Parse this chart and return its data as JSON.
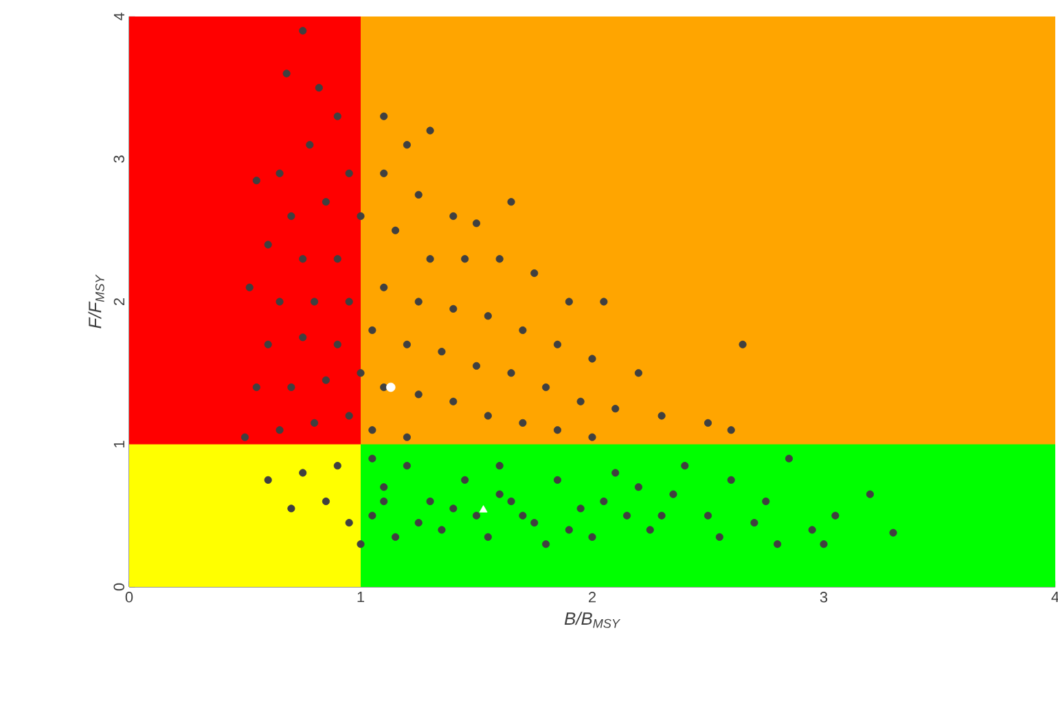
{
  "chart_data": {
    "type": "scatter",
    "xlabel": "B/B$_{MSY}$",
    "ylabel": "F/F$_{MSY}$",
    "xlim": [
      0,
      4
    ],
    "ylim": [
      0,
      4
    ],
    "xticks": [
      0,
      1,
      2,
      3,
      4
    ],
    "yticks": [
      0,
      1,
      2,
      3,
      4
    ],
    "series": [
      {
        "type": "area",
        "color": "#ff0000",
        "x": [
          0,
          1
        ],
        "values": [
          4,
          4
        ]
      },
      {
        "type": "area",
        "color": "#ffa500",
        "x": [
          1,
          4
        ],
        "values": [
          4,
          4
        ]
      },
      {
        "type": "area",
        "color": "#ffff00",
        "x": [
          0,
          1
        ],
        "values": [
          1,
          1
        ]
      },
      {
        "type": "area",
        "color": "#00ff00",
        "x": [
          1,
          4
        ],
        "values": [
          1,
          1
        ]
      },
      {
        "color": "#404040",
        "marker": "circle",
        "x": [
          0.75,
          0.68,
          0.82,
          0.9,
          0.78,
          0.65,
          0.95,
          0.55,
          0.7,
          0.85,
          1.0,
          0.6,
          0.75,
          0.9,
          0.52,
          0.65,
          0.8,
          0.95,
          0.6,
          0.75,
          0.9,
          0.55,
          0.7,
          0.85,
          1.0,
          0.5,
          0.65,
          0.8,
          0.95,
          1.1,
          1.2,
          1.3,
          1.1,
          1.25,
          1.4,
          1.5,
          1.65,
          1.15,
          1.3,
          1.45,
          1.6,
          1.75,
          1.9,
          2.05,
          1.1,
          1.25,
          1.4,
          1.55,
          1.7,
          1.85,
          2.0,
          2.2,
          1.05,
          1.2,
          1.35,
          1.5,
          1.65,
          1.8,
          1.95,
          2.1,
          2.3,
          2.5,
          2.65,
          2.6,
          1.1,
          1.25,
          1.4,
          1.55,
          1.7,
          1.85,
          2.0,
          1.05,
          1.2,
          0.6,
          0.75,
          0.9,
          0.7,
          0.85,
          0.95,
          1.05,
          1.1,
          1.05,
          1.15,
          1.2,
          1.3,
          1.35,
          1.45,
          1.5,
          1.55,
          1.6,
          1.65,
          1.75,
          1.8,
          1.85,
          1.95,
          2.0,
          2.1,
          2.15,
          2.25,
          2.35,
          2.4,
          2.5,
          2.55,
          2.6,
          2.7,
          2.8,
          2.85,
          2.75,
          2.95,
          3.05,
          3.0,
          3.2,
          3.3,
          1.0,
          1.25,
          1.4,
          1.7,
          1.9,
          2.05,
          2.3,
          1.1,
          1.6,
          2.2
        ],
        "values": [
          3.9,
          3.6,
          3.5,
          3.3,
          3.1,
          2.9,
          2.9,
          2.85,
          2.6,
          2.7,
          2.6,
          2.4,
          2.3,
          2.3,
          2.1,
          2.0,
          2.0,
          2.0,
          1.7,
          1.75,
          1.7,
          1.4,
          1.4,
          1.45,
          1.5,
          1.05,
          1.1,
          1.15,
          1.2,
          3.3,
          3.1,
          3.2,
          2.9,
          2.75,
          2.6,
          2.55,
          2.7,
          2.5,
          2.3,
          2.3,
          2.3,
          2.2,
          2.0,
          2.0,
          2.1,
          2.0,
          1.95,
          1.9,
          1.8,
          1.7,
          1.6,
          1.5,
          1.8,
          1.7,
          1.65,
          1.55,
          1.5,
          1.4,
          1.3,
          1.25,
          1.2,
          1.15,
          1.7,
          1.1,
          1.4,
          1.35,
          1.3,
          1.2,
          1.15,
          1.1,
          1.05,
          1.1,
          1.05,
          0.75,
          0.8,
          0.85,
          0.55,
          0.6,
          0.45,
          0.9,
          0.7,
          0.5,
          0.35,
          0.85,
          0.6,
          0.4,
          0.75,
          0.5,
          0.35,
          0.85,
          0.6,
          0.45,
          0.3,
          0.75,
          0.55,
          0.35,
          0.8,
          0.5,
          0.4,
          0.65,
          0.85,
          0.5,
          0.35,
          0.75,
          0.45,
          0.3,
          0.9,
          0.6,
          0.4,
          0.5,
          0.3,
          0.65,
          0.38,
          0.3,
          0.45,
          0.55,
          0.5,
          0.4,
          0.6,
          0.5,
          0.6,
          0.65,
          0.7
        ]
      },
      {
        "color": "#ffffff",
        "marker": "circle",
        "x": [
          1.13
        ],
        "values": [
          1.4
        ]
      },
      {
        "color": "#ffffff",
        "marker": "triangle",
        "x": [
          1.53
        ],
        "values": [
          0.54
        ]
      }
    ]
  }
}
